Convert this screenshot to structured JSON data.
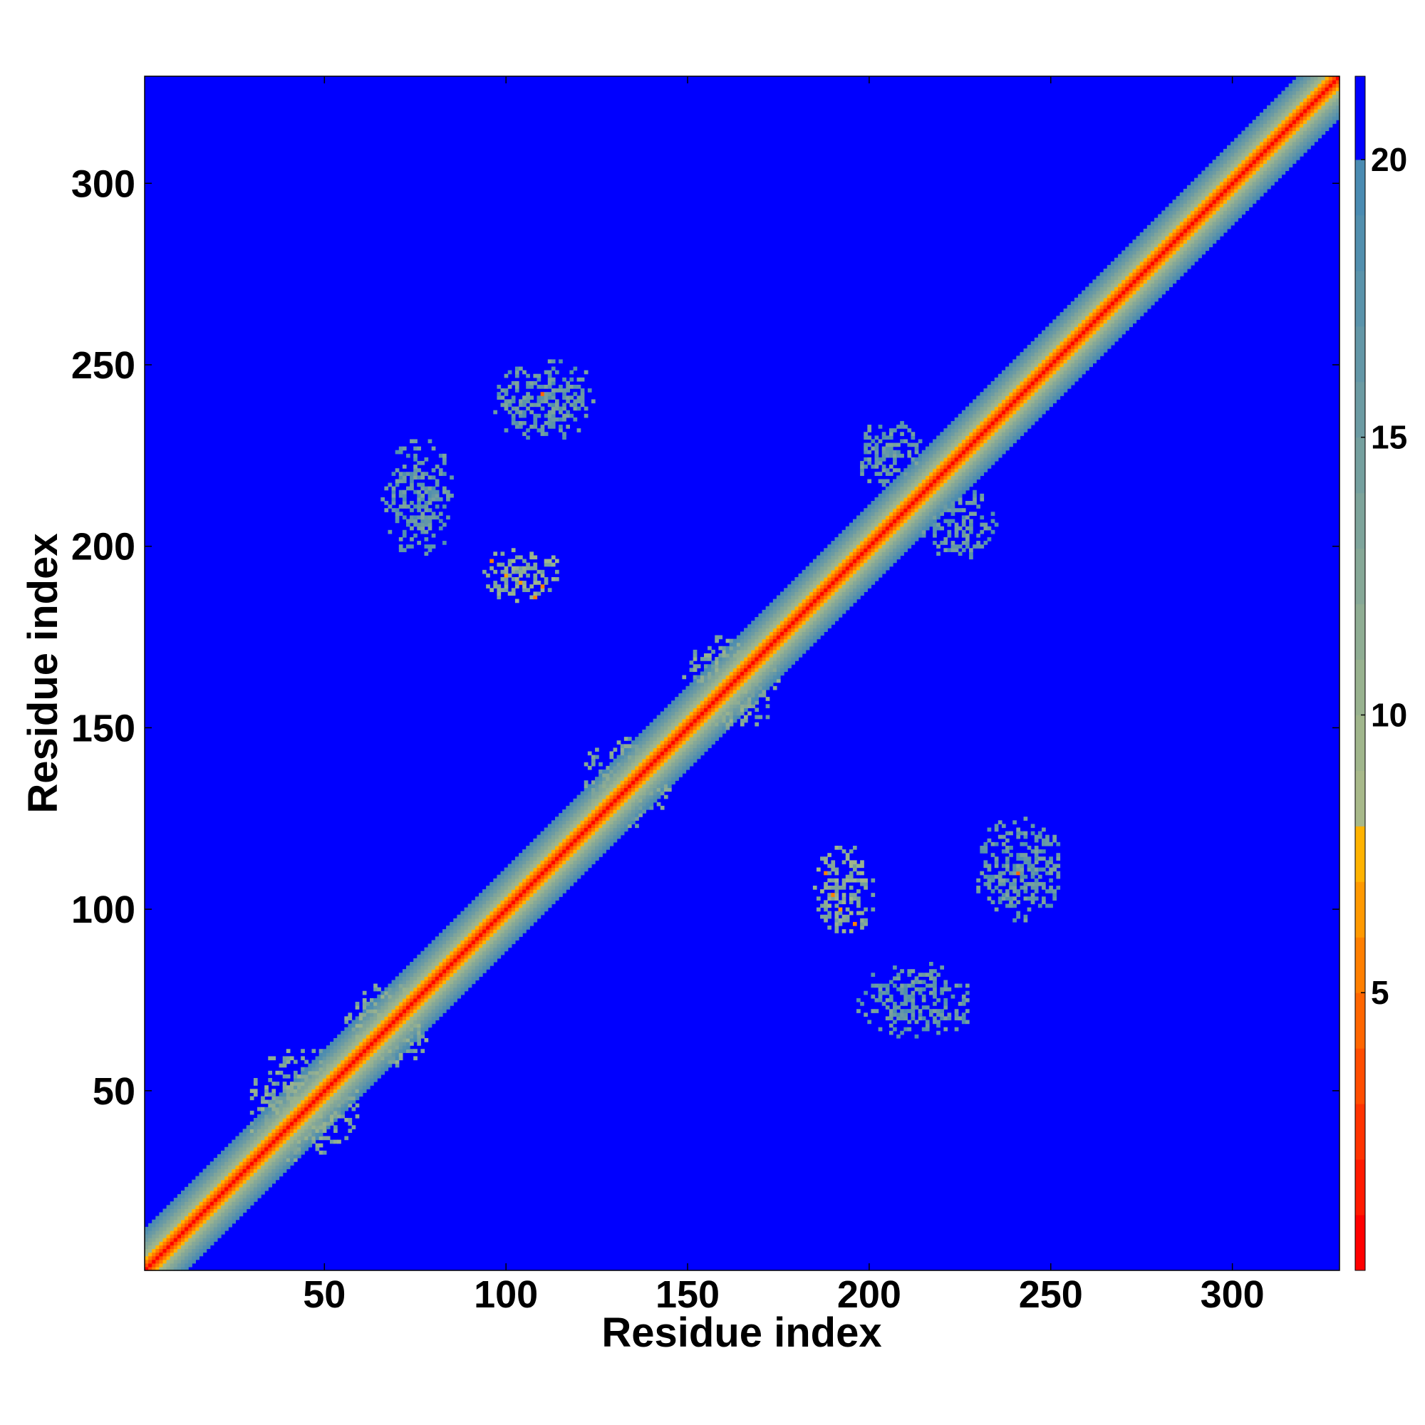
{
  "chart_data": {
    "type": "heatmap",
    "title": "",
    "xlabel": "Residue index",
    "ylabel": "Residue index",
    "xlim": [
      1,
      329
    ],
    "ylim": [
      1,
      329
    ],
    "x_ticks": [
      50,
      100,
      150,
      200,
      250,
      300
    ],
    "y_ticks": [
      50,
      100,
      150,
      200,
      250,
      300
    ],
    "colorbar": {
      "range": [
        0,
        21.5
      ],
      "ticks": [
        5,
        10,
        15,
        20
      ],
      "levels": [
        {
          "max": 1,
          "color": "#ff0000"
        },
        {
          "max": 2,
          "color": "#ff1a00"
        },
        {
          "max": 3,
          "color": "#ff3300"
        },
        {
          "max": 4,
          "color": "#ff4d00"
        },
        {
          "max": 5,
          "color": "#ff6600"
        },
        {
          "max": 6,
          "color": "#ff7f00"
        },
        {
          "max": 7,
          "color": "#ff9900"
        },
        {
          "max": 8,
          "color": "#ffb300"
        },
        {
          "max": 9,
          "color": "#a8b98a"
        },
        {
          "max": 10,
          "color": "#a0b68c"
        },
        {
          "max": 11,
          "color": "#98b28f"
        },
        {
          "max": 12,
          "color": "#8fad93"
        },
        {
          "max": 13,
          "color": "#86a897"
        },
        {
          "max": 14,
          "color": "#7ea49b"
        },
        {
          "max": 15,
          "color": "#75a09f"
        },
        {
          "max": 16,
          "color": "#6c9ba3"
        },
        {
          "max": 17,
          "color": "#6397a7"
        },
        {
          "max": 18,
          "color": "#5a93ab"
        },
        {
          "max": 19,
          "color": "#528fae"
        },
        {
          "max": 20,
          "color": "#4a8bb2"
        },
        {
          "max": 21.5,
          "color": "#0000ff"
        }
      ]
    },
    "background_value": 21.5,
    "diagonal_band": {
      "values_by_offset": [
        0,
        3.5,
        5.5,
        7.5,
        9.5,
        11,
        12.5,
        14,
        15.5,
        17,
        18.5,
        19.5
      ]
    },
    "contact_regions": [
      {
        "x": [
          92,
          116
        ],
        "y": [
          184,
          200
        ],
        "typical_value": 12,
        "hotspots": [
          [
            96,
            196,
            6
          ],
          [
            100,
            192,
            7
          ],
          [
            104,
            190,
            7
          ],
          [
            108,
            186,
            6
          ],
          [
            110,
            189,
            6
          ]
        ]
      },
      {
        "x": [
          66,
          86
        ],
        "y": [
          196,
          230
        ],
        "typical_value": 16,
        "hotspots": []
      },
      {
        "x": [
          96,
          126
        ],
        "y": [
          228,
          252
        ],
        "typical_value": 16,
        "hotspots": [
          [
            110,
            242,
            5
          ]
        ]
      },
      {
        "x": [
          184,
          202
        ],
        "y": [
          92,
          118
        ],
        "typical_value": 12,
        "hotspots": [
          [
            188,
            110,
            6
          ],
          [
            190,
            104,
            6
          ],
          [
            192,
            100,
            7
          ],
          [
            196,
            96,
            6
          ]
        ]
      },
      {
        "x": [
          196,
          230
        ],
        "y": [
          64,
          86
        ],
        "typical_value": 16,
        "hotspots": []
      },
      {
        "x": [
          228,
          254
        ],
        "y": [
          96,
          126
        ],
        "typical_value": 16,
        "hotspots": [
          [
            241,
            110,
            5
          ]
        ]
      },
      {
        "x": [
          28,
          60
        ],
        "y": [
          30,
          62
        ],
        "typical_value": 13,
        "hotspots": []
      },
      {
        "x": [
          55,
          80
        ],
        "y": [
          55,
          80
        ],
        "typical_value": 13,
        "hotspots": []
      },
      {
        "x": [
          120,
          146
        ],
        "y": [
          122,
          148
        ],
        "typical_value": 14,
        "hotspots": []
      },
      {
        "x": [
          148,
          176
        ],
        "y": [
          148,
          176
        ],
        "typical_value": 13,
        "hotspots": []
      },
      {
        "x": [
          196,
          216
        ],
        "y": [
          214,
          236
        ],
        "typical_value": 16,
        "hotspots": []
      },
      {
        "x": [
          214,
          236
        ],
        "y": [
          196,
          216
        ],
        "typical_value": 16,
        "hotspots": []
      }
    ]
  }
}
